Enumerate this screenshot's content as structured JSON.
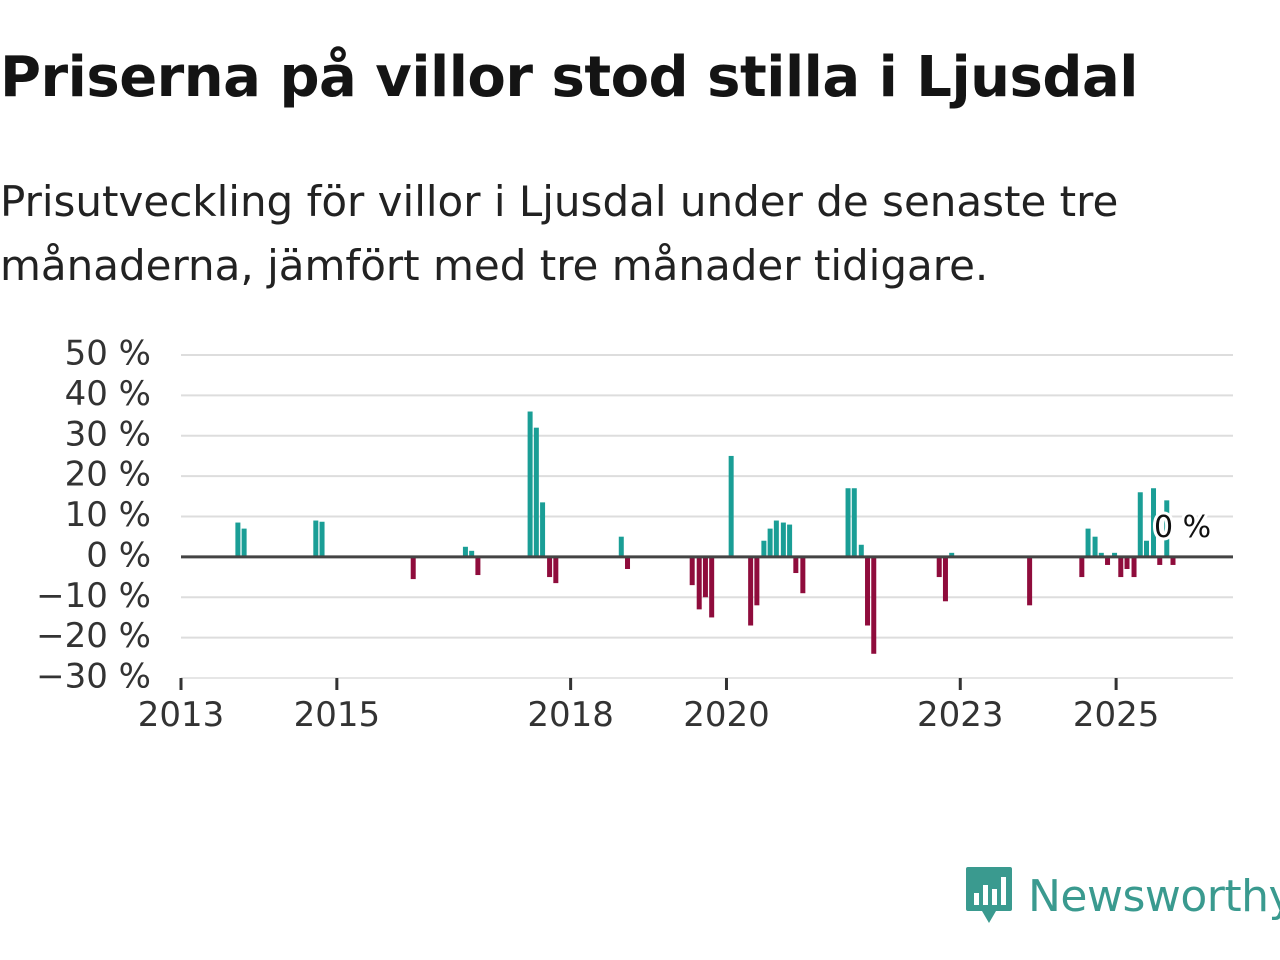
{
  "chart_data": {
    "type": "bar",
    "title": "Priserna på villor stod stilla i Ljusdal",
    "subtitle": "Prisutveckling för villor i Ljusdal under de senaste tre månaderna, jämfört med tre månader tidigare.",
    "ylim": [
      -30,
      50
    ],
    "yticks": [
      50,
      40,
      30,
      20,
      10,
      0,
      -10,
      -20,
      -30
    ],
    "ytick_labels": [
      "50 %",
      "40 %",
      "30 %",
      "20 %",
      "10 %",
      "0 %",
      "−10 %",
      "−20 %",
      "−30 %"
    ],
    "xlim": [
      2013.0,
      2026.5
    ],
    "xticks": [
      2013,
      2015,
      2018,
      2020,
      2023,
      2025
    ],
    "xtick_labels": [
      "2013",
      "2015",
      "2018",
      "2020",
      "2023",
      "2025"
    ],
    "positive_color": "#1a9e96",
    "negative_color": "#8f0c3c",
    "annotation": {
      "text": "0 %",
      "x": 2026.0,
      "y": 0
    },
    "points": [
      {
        "x": 2013.73,
        "y": 8.5
      },
      {
        "x": 2013.81,
        "y": 7
      },
      {
        "x": 2014.73,
        "y": 9
      },
      {
        "x": 2014.81,
        "y": 8.7
      },
      {
        "x": 2015.98,
        "y": -5.5
      },
      {
        "x": 2016.65,
        "y": 2.5
      },
      {
        "x": 2016.73,
        "y": 1.5
      },
      {
        "x": 2016.81,
        "y": -4.5
      },
      {
        "x": 2017.48,
        "y": 36
      },
      {
        "x": 2017.56,
        "y": 32
      },
      {
        "x": 2017.64,
        "y": 13.5
      },
      {
        "x": 2017.73,
        "y": -5
      },
      {
        "x": 2017.81,
        "y": -6.5
      },
      {
        "x": 2018.65,
        "y": 5
      },
      {
        "x": 2018.73,
        "y": -3
      },
      {
        "x": 2019.56,
        "y": -7
      },
      {
        "x": 2019.65,
        "y": -13
      },
      {
        "x": 2019.73,
        "y": -10
      },
      {
        "x": 2019.81,
        "y": -15
      },
      {
        "x": 2020.06,
        "y": 25
      },
      {
        "x": 2020.31,
        "y": -17
      },
      {
        "x": 2020.39,
        "y": -12
      },
      {
        "x": 2020.48,
        "y": 4
      },
      {
        "x": 2020.56,
        "y": 7
      },
      {
        "x": 2020.64,
        "y": 9
      },
      {
        "x": 2020.73,
        "y": 8.5
      },
      {
        "x": 2020.81,
        "y": 8
      },
      {
        "x": 2020.89,
        "y": -4
      },
      {
        "x": 2020.98,
        "y": -9
      },
      {
        "x": 2021.56,
        "y": 17
      },
      {
        "x": 2021.64,
        "y": 17
      },
      {
        "x": 2021.73,
        "y": 3
      },
      {
        "x": 2021.81,
        "y": -17
      },
      {
        "x": 2021.89,
        "y": -24
      },
      {
        "x": 2022.73,
        "y": -5
      },
      {
        "x": 2022.81,
        "y": -11
      },
      {
        "x": 2022.89,
        "y": 1
      },
      {
        "x": 2023.89,
        "y": -12
      },
      {
        "x": 2024.56,
        "y": -5
      },
      {
        "x": 2024.64,
        "y": 7
      },
      {
        "x": 2024.73,
        "y": 5
      },
      {
        "x": 2024.81,
        "y": 1
      },
      {
        "x": 2024.89,
        "y": -2
      },
      {
        "x": 2024.98,
        "y": 1
      },
      {
        "x": 2025.06,
        "y": -5
      },
      {
        "x": 2025.14,
        "y": -3
      },
      {
        "x": 2025.23,
        "y": -5
      },
      {
        "x": 2025.31,
        "y": 16
      },
      {
        "x": 2025.39,
        "y": 4
      },
      {
        "x": 2025.48,
        "y": 17
      },
      {
        "x": 2025.56,
        "y": -2
      },
      {
        "x": 2025.65,
        "y": 14
      },
      {
        "x": 2025.73,
        "y": -2
      }
    ]
  },
  "brand": {
    "name": "Newsworthy",
    "color": "#3a9a8f"
  }
}
